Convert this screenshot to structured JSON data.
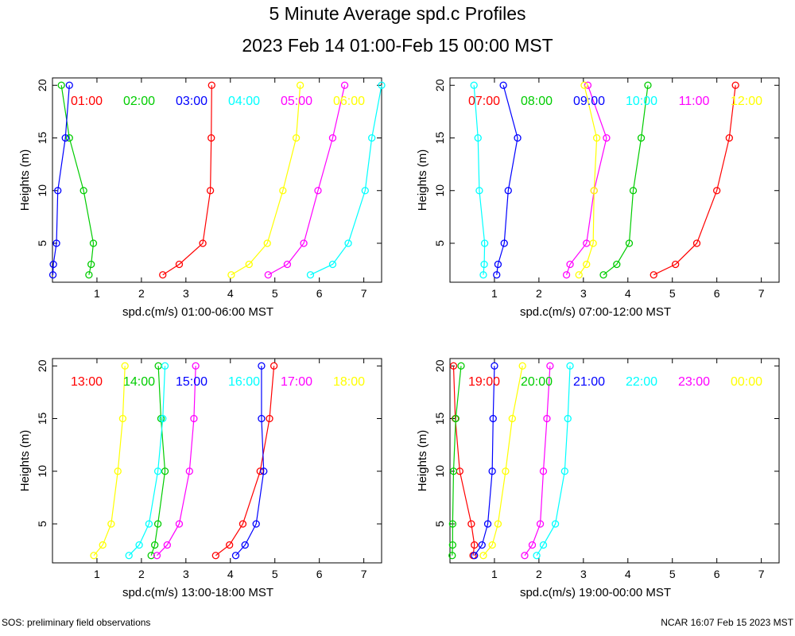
{
  "header": {
    "title": "5 Minute Average spd.c Profiles",
    "subtitle": "2023 Feb 14 01:00-Feb 15 00:00 MST"
  },
  "footer": {
    "left": "SOS: preliminary field observations",
    "right": "NCAR 16:07 Feb 15 2023 MST"
  },
  "colors": [
    "#ff0000",
    "#00cc00",
    "#0000ff",
    "#00ffff",
    "#ff00ff",
    "#ffff00"
  ],
  "chart_data": [
    {
      "type": "line",
      "xlabel": "spd.c(m/s) 01:00-06:00 MST",
      "ylabel": "Heights (m)",
      "xlim": [
        0,
        7.4
      ],
      "ylim": [
        1.3,
        20.7
      ],
      "xticks": [
        "1",
        "2",
        "3",
        "4",
        "5",
        "6",
        "7"
      ],
      "yticks": [
        "5",
        "10",
        "15",
        "20"
      ],
      "heights": [
        2,
        3,
        5,
        10,
        15,
        20
      ],
      "series": [
        {
          "name": "01:00",
          "values": [
            2.48,
            2.85,
            3.38,
            3.55,
            3.57,
            3.58
          ]
        },
        {
          "name": "02:00",
          "values": [
            0.82,
            0.87,
            0.92,
            0.7,
            0.38,
            0.2
          ]
        },
        {
          "name": "03:00",
          "values": [
            0.01,
            0.02,
            0.09,
            0.12,
            0.29,
            0.38
          ]
        },
        {
          "name": "04:00",
          "values": [
            5.8,
            6.3,
            6.65,
            7.03,
            7.18,
            7.4
          ]
        },
        {
          "name": "05:00",
          "values": [
            4.85,
            5.28,
            5.65,
            5.97,
            6.3,
            6.57
          ]
        },
        {
          "name": "06:00",
          "values": [
            4.02,
            4.42,
            4.83,
            5.18,
            5.48,
            5.57
          ]
        }
      ]
    },
    {
      "type": "line",
      "xlabel": "spd.c(m/s) 07:00-12:00 MST",
      "ylabel": "Heights (m)",
      "xlim": [
        0,
        7.4
      ],
      "ylim": [
        1.3,
        20.7
      ],
      "xticks": [
        "1",
        "2",
        "3",
        "4",
        "5",
        "6",
        "7"
      ],
      "yticks": [
        "5",
        "10",
        "15",
        "20"
      ],
      "heights": [
        2,
        3,
        5,
        10,
        15,
        20
      ],
      "series": [
        {
          "name": "07:00",
          "values": [
            4.58,
            5.07,
            5.55,
            6.0,
            6.28,
            6.42
          ]
        },
        {
          "name": "08:00",
          "values": [
            3.45,
            3.75,
            4.03,
            4.12,
            4.3,
            4.45
          ]
        },
        {
          "name": "09:00",
          "values": [
            1.05,
            1.08,
            1.22,
            1.31,
            1.52,
            1.2
          ]
        },
        {
          "name": "10:00",
          "values": [
            0.75,
            0.77,
            0.78,
            0.66,
            0.63,
            0.54
          ]
        },
        {
          "name": "11:00",
          "values": [
            2.62,
            2.7,
            3.07,
            3.24,
            3.52,
            3.1
          ]
        },
        {
          "name": "12:00",
          "values": [
            2.9,
            3.07,
            3.22,
            3.24,
            3.3,
            3.02
          ]
        }
      ]
    },
    {
      "type": "line",
      "xlabel": "spd.c(m/s) 13:00-18:00 MST",
      "ylabel": "Heights (m)",
      "xlim": [
        0,
        7.4
      ],
      "ylim": [
        1.3,
        20.7
      ],
      "xticks": [
        "1",
        "2",
        "3",
        "4",
        "5",
        "6",
        "7"
      ],
      "yticks": [
        "5",
        "10",
        "15",
        "20"
      ],
      "heights": [
        2,
        3,
        5,
        10,
        15,
        20
      ],
      "series": [
        {
          "name": "13:00",
          "values": [
            3.67,
            3.98,
            4.28,
            4.67,
            4.88,
            4.98
          ]
        },
        {
          "name": "14:00",
          "values": [
            2.22,
            2.3,
            2.37,
            2.53,
            2.44,
            2.38
          ]
        },
        {
          "name": "15:00",
          "values": [
            4.12,
            4.33,
            4.58,
            4.75,
            4.7,
            4.7
          ]
        },
        {
          "name": "16:00",
          "values": [
            1.72,
            1.95,
            2.17,
            2.37,
            2.48,
            2.53
          ]
        },
        {
          "name": "17:00",
          "values": [
            2.35,
            2.58,
            2.85,
            3.08,
            3.18,
            3.22
          ]
        },
        {
          "name": "18:00",
          "values": [
            0.93,
            1.13,
            1.32,
            1.47,
            1.58,
            1.63
          ]
        }
      ]
    },
    {
      "type": "line",
      "xlabel": "spd.c(m/s) 19:00-00:00 MST",
      "ylabel": "Heights (m)",
      "xlim": [
        0,
        7.4
      ],
      "ylim": [
        1.3,
        20.7
      ],
      "xticks": [
        "1",
        "2",
        "3",
        "4",
        "5",
        "6",
        "7"
      ],
      "yticks": [
        "5",
        "10",
        "15",
        "20"
      ],
      "heights": [
        2,
        3,
        5,
        10,
        15,
        20
      ],
      "series": [
        {
          "name": "19:00",
          "values": [
            0.52,
            0.55,
            0.48,
            0.22,
            0.12,
            0.08
          ]
        },
        {
          "name": "20:00",
          "values": [
            0.05,
            0.06,
            0.06,
            0.08,
            0.13,
            0.25
          ]
        },
        {
          "name": "21:00",
          "values": [
            0.55,
            0.72,
            0.85,
            0.95,
            0.97,
            1.0
          ]
        },
        {
          "name": "22:00",
          "values": [
            1.95,
            2.1,
            2.37,
            2.58,
            2.65,
            2.7
          ]
        },
        {
          "name": "23:00",
          "values": [
            1.68,
            1.85,
            2.03,
            2.1,
            2.18,
            2.25
          ]
        },
        {
          "name": "00:00",
          "values": [
            0.75,
            0.95,
            1.08,
            1.25,
            1.4,
            1.63
          ]
        }
      ]
    }
  ]
}
